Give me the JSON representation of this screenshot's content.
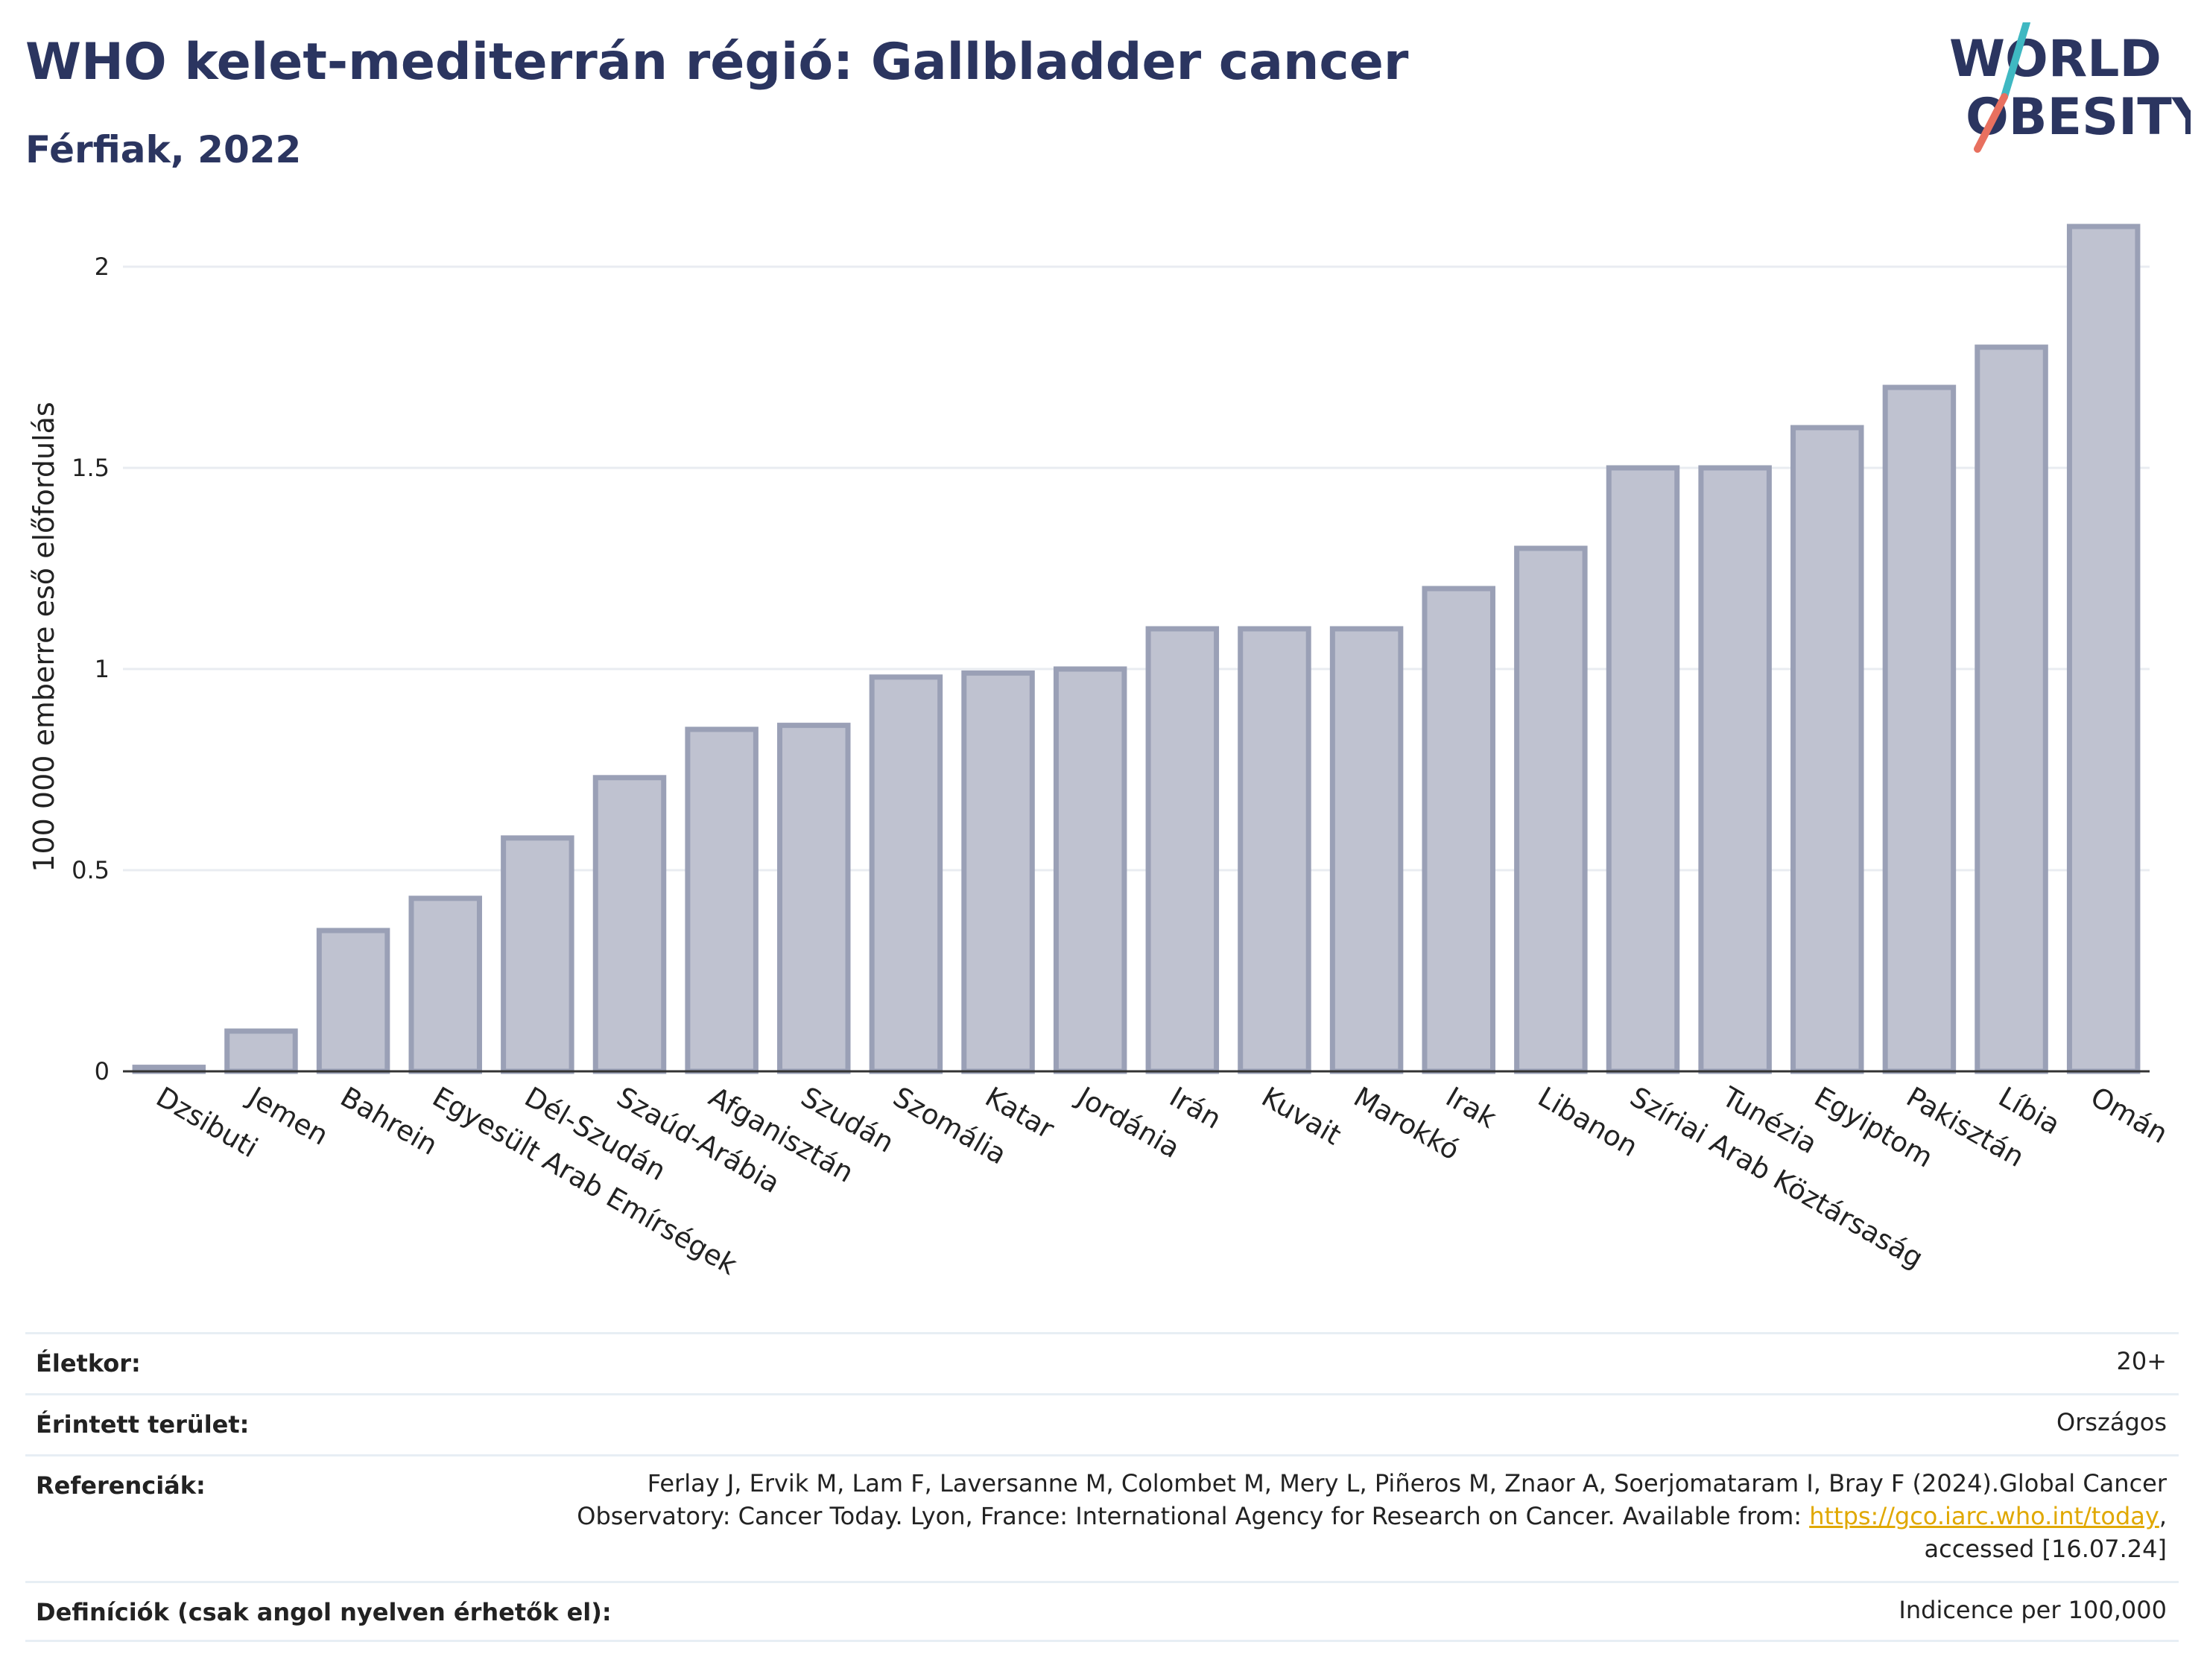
{
  "header": {
    "title": "WHO kelet-mediterrán régió: Gallbladder cancer",
    "subtitle": "Férfiak, 2022"
  },
  "logo": {
    "line1": "WORLD",
    "line2": "OBESITY",
    "slash_colors": [
      "#3fb8c2",
      "#e8705f"
    ],
    "text_color": "#2b3560"
  },
  "chart_data": {
    "type": "bar",
    "categories": [
      "Dzsibuti",
      "Jemen",
      "Bahrein",
      "Egyesült Arab Emírségek",
      "Dél-Szudán",
      "Szaúd-Arábia",
      "Afganisztán",
      "Szudán",
      "Szomália",
      "Katar",
      "Jordánia",
      "Irán",
      "Kuvait",
      "Marokkó",
      "Irak",
      "Libanon",
      "Szíriai Arab Köztársaság",
      "Tunézia",
      "Egyiptom",
      "Pakisztán",
      "Líbia",
      "Omán"
    ],
    "values": [
      0.01,
      0.1,
      0.35,
      0.43,
      0.58,
      0.73,
      0.85,
      0.86,
      0.98,
      0.99,
      1.0,
      1.1,
      1.1,
      1.1,
      1.2,
      1.3,
      1.5,
      1.5,
      1.6,
      1.7,
      1.8,
      2.1
    ],
    "ylabel": "100 000 emberre eső előfordulás",
    "ylim": [
      0,
      2.2
    ],
    "yticks": [
      0,
      0.5,
      1,
      1.5,
      2
    ],
    "ytick_labels": [
      "0",
      "0.5",
      "1",
      "1.5",
      "2"
    ],
    "grid": true,
    "bar_color": "#bfc2d0",
    "bar_edge_color": "#9aa0b6"
  },
  "info": [
    {
      "key": "Életkor:",
      "value": "20+"
    },
    {
      "key": "Érintett terület:",
      "value": "Országos"
    },
    {
      "key": "Referenciák:",
      "value_parts": [
        "Ferlay J, Ervik M, Lam F, Laversanne M, Colombet M, Mery L, Piñeros M, Znaor A, Soerjomataram I, Bray F (2024).Global Cancer",
        "Observatory: Cancer Today. Lyon, France: International Agency for Research on Cancer. Available from: ",
        "https://gco.iarc.who.int/today",
        ",",
        "accessed [16.07.24]"
      ]
    },
    {
      "key": "Definíciók (csak angol nyelven érhetők el):",
      "value": "Indicence per 100,000"
    }
  ]
}
